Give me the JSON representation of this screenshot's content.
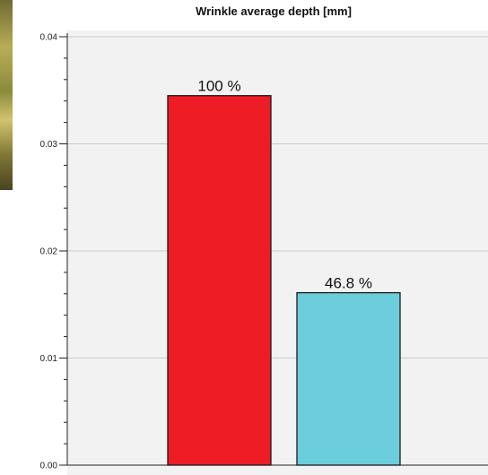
{
  "chart_data": {
    "type": "bar",
    "title": "Wrinkle average depth [mm]",
    "categories": [
      "",
      ""
    ],
    "values": [
      0.0345,
      0.0161
    ],
    "data_labels": [
      "100 %",
      "46.8 %"
    ],
    "colors": [
      "#ee1c25",
      "#6ccddc"
    ],
    "ylim": [
      0,
      0.04
    ],
    "yticks": [
      "0.00",
      "0.01",
      "0.02",
      "0.03",
      "0.04"
    ],
    "xlabel": "",
    "ylabel": "",
    "grid": true
  }
}
